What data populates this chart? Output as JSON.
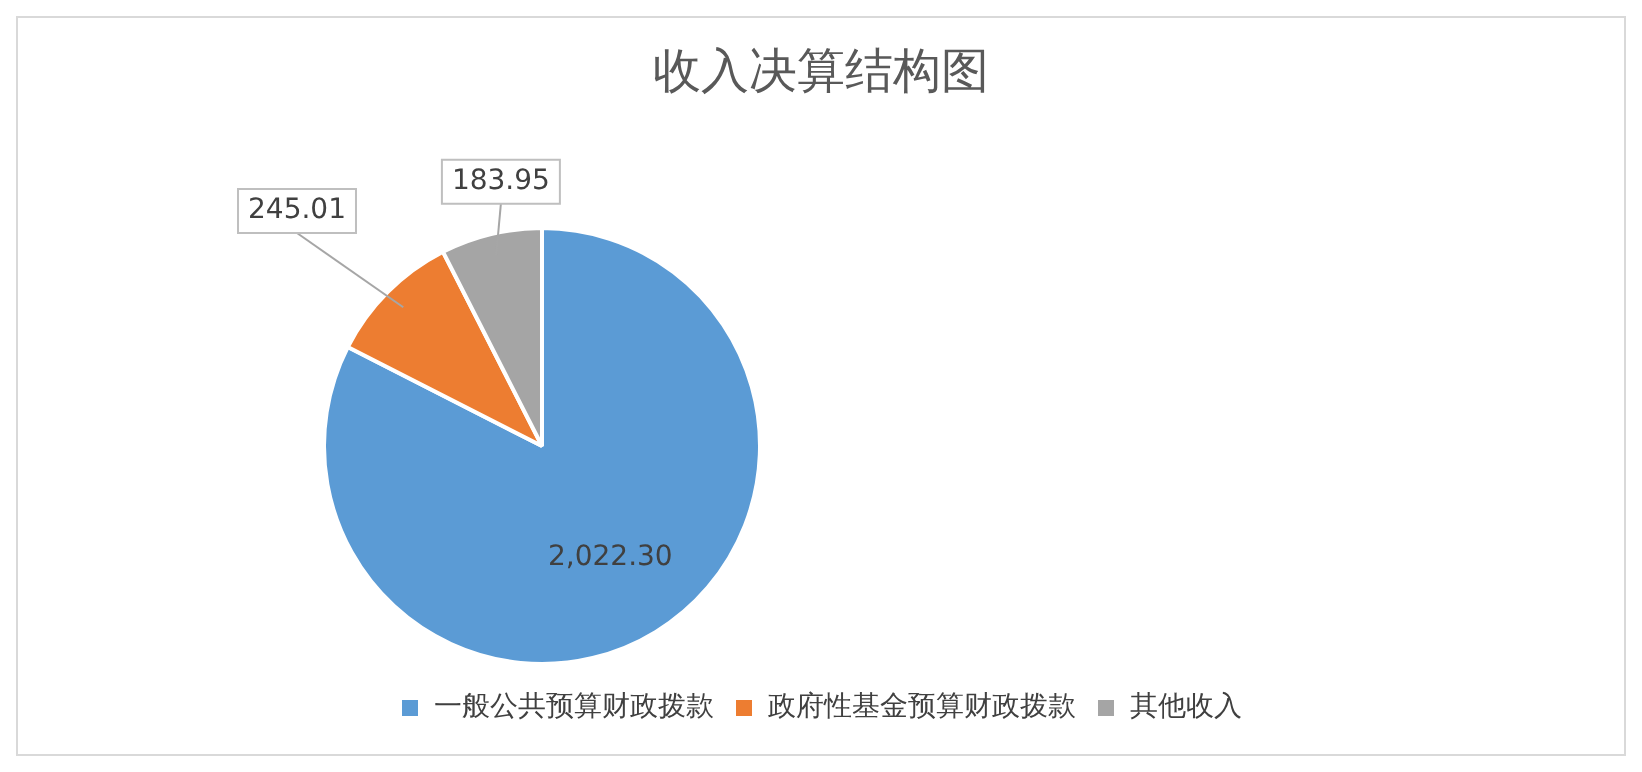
{
  "chart_data": {
    "type": "pie",
    "title": "收入决算结构图",
    "categories": [
      "一般公共预算财政拨款",
      "政府性基金预算财政拨款",
      "其他收入"
    ],
    "values": [
      2022.3,
      245.01,
      183.95
    ],
    "value_labels": [
      "2,022.30",
      "245.01",
      "183.95"
    ],
    "colors": [
      "#5b9bd5",
      "#ed7d31",
      "#a5a5a5"
    ],
    "legend": "bottom"
  }
}
